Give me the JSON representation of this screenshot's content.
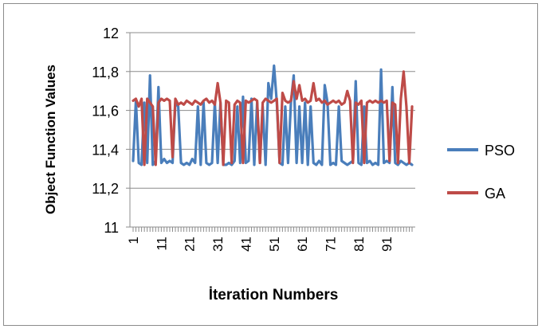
{
  "chart_data": {
    "type": "line",
    "title": "",
    "xlabel": "İteration Numbers",
    "ylabel": "Object Function Values",
    "xlim": [
      1,
      100
    ],
    "ylim": [
      11,
      12
    ],
    "yticks": [
      11,
      11.2,
      11.4,
      11.6,
      11.8,
      12
    ],
    "ytick_labels": [
      "11",
      "11,2",
      "11,4",
      "11,6",
      "11,8",
      "12"
    ],
    "xtick_labels": [
      "1",
      "11",
      "21",
      "31",
      "41",
      "51",
      "61",
      "71",
      "81",
      "91"
    ],
    "grid": true,
    "legend_position": "right",
    "series": [
      {
        "name": "PSO",
        "color": "#4a7ebb",
        "values": [
          11.34,
          11.65,
          11.33,
          11.32,
          11.64,
          11.33,
          11.78,
          11.32,
          11.34,
          11.72,
          11.33,
          11.35,
          11.33,
          11.34,
          11.33,
          11.64,
          11.62,
          11.33,
          11.32,
          11.33,
          11.32,
          11.35,
          11.33,
          11.62,
          11.32,
          11.64,
          11.33,
          11.32,
          11.33,
          11.64,
          11.33,
          11.64,
          11.32,
          11.32,
          11.33,
          11.32,
          11.34,
          11.62,
          11.33,
          11.67,
          11.33,
          11.34,
          11.66,
          11.32,
          11.64,
          11.33,
          11.62,
          11.32,
          11.74,
          11.66,
          11.83,
          11.64,
          11.33,
          11.32,
          11.62,
          11.33,
          11.64,
          11.78,
          11.33,
          11.62,
          11.33,
          11.64,
          11.32,
          11.62,
          11.33,
          11.32,
          11.34,
          11.32,
          11.73,
          11.64,
          11.32,
          11.33,
          11.32,
          11.62,
          11.34,
          11.33,
          11.32,
          11.33,
          11.34,
          11.75,
          11.33,
          11.32,
          11.62,
          11.33,
          11.34,
          11.32,
          11.33,
          11.32,
          11.81,
          11.33,
          11.34,
          11.33,
          11.72,
          11.33,
          11.32,
          11.34,
          11.33,
          11.32,
          11.33,
          11.32
        ]
      },
      {
        "name": "GA",
        "color": "#be4b48",
        "values": [
          11.65,
          11.66,
          11.62,
          11.66,
          11.32,
          11.66,
          11.64,
          11.62,
          11.32,
          11.64,
          11.66,
          11.65,
          11.66,
          11.65,
          11.36,
          11.66,
          11.63,
          11.64,
          11.63,
          11.65,
          11.64,
          11.63,
          11.65,
          11.64,
          11.63,
          11.65,
          11.66,
          11.64,
          11.65,
          11.63,
          11.74,
          11.64,
          11.32,
          11.65,
          11.64,
          11.33,
          11.63,
          11.65,
          11.64,
          11.33,
          11.65,
          11.64,
          11.65,
          11.66,
          11.65,
          11.33,
          11.64,
          11.66,
          11.65,
          11.64,
          11.65,
          11.66,
          11.33,
          11.69,
          11.65,
          11.64,
          11.65,
          11.75,
          11.66,
          11.73,
          11.65,
          11.66,
          11.64,
          11.65,
          11.74,
          11.65,
          11.66,
          11.64,
          11.65,
          11.63,
          11.64,
          11.65,
          11.64,
          11.65,
          11.63,
          11.64,
          11.7,
          11.65,
          11.33,
          11.64,
          11.63,
          11.65,
          11.33,
          11.64,
          11.65,
          11.64,
          11.65,
          11.64,
          11.65,
          11.64,
          11.65,
          11.34,
          11.64,
          11.63,
          11.33,
          11.66,
          11.8,
          11.62,
          11.33,
          11.62
        ]
      }
    ]
  }
}
